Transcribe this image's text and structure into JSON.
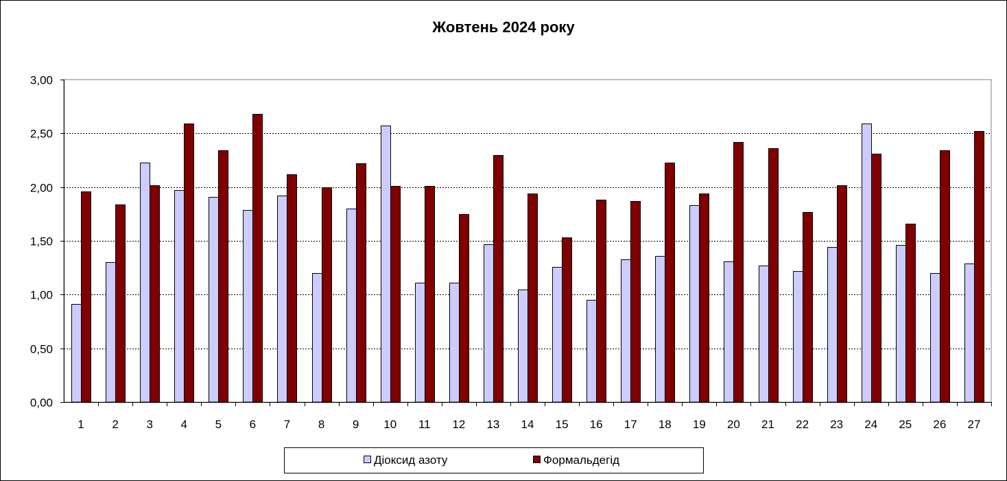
{
  "chart_data": {
    "type": "bar",
    "title": "Жовтень 2024 року",
    "xlabel": "",
    "ylabel": "",
    "ylim": [
      0,
      3
    ],
    "yticks": [
      "0,00",
      "0,50",
      "1,00",
      "1,50",
      "2,00",
      "2,50",
      "3,00"
    ],
    "ytick_values": [
      0,
      0.5,
      1,
      1.5,
      2,
      2.5,
      3
    ],
    "grid": true,
    "legend_position": "bottom",
    "categories": [
      "1",
      "2",
      "3",
      "4",
      "5",
      "6",
      "7",
      "8",
      "9",
      "10",
      "11",
      "12",
      "13",
      "14",
      "15",
      "16",
      "17",
      "18",
      "19",
      "20",
      "21",
      "22",
      "23",
      "24",
      "25",
      "26",
      "27"
    ],
    "series": [
      {
        "name": "Діоксид азоту",
        "color": "#ccccff",
        "values": [
          0.91,
          1.3,
          2.23,
          1.97,
          1.91,
          1.79,
          1.92,
          1.2,
          1.8,
          2.57,
          1.11,
          1.11,
          1.47,
          1.05,
          1.26,
          0.95,
          1.33,
          1.36,
          1.83,
          1.31,
          1.27,
          1.22,
          1.44,
          2.59,
          1.46,
          1.2,
          1.29
        ]
      },
      {
        "name": "Формальдегід",
        "color": "#800000",
        "values": [
          1.96,
          1.84,
          2.02,
          2.59,
          2.34,
          2.68,
          2.12,
          2.0,
          2.22,
          2.01,
          2.01,
          1.75,
          2.3,
          1.94,
          1.53,
          1.88,
          1.87,
          2.23,
          1.94,
          2.42,
          2.36,
          1.77,
          2.02,
          2.31,
          1.66,
          2.34,
          2.52
        ]
      }
    ]
  }
}
